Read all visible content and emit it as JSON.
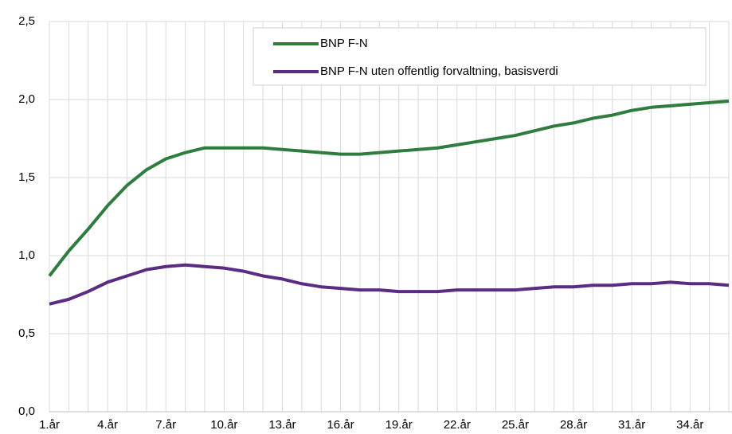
{
  "chart_data": {
    "type": "line",
    "categories": [
      "1.år",
      null,
      null,
      "4.år",
      null,
      null,
      "7.år",
      null,
      null,
      "10.år",
      null,
      null,
      "13.år",
      null,
      null,
      "16.år",
      null,
      null,
      "19.år",
      null,
      null,
      "22.år",
      null,
      null,
      "25.år",
      null,
      null,
      "28.år",
      null,
      null,
      "31.år",
      null,
      null,
      "34.år",
      null,
      null
    ],
    "series": [
      {
        "name": "BNP F-N",
        "color": "#2e7d3e",
        "values": [
          0.87,
          1.03,
          1.17,
          1.32,
          1.45,
          1.55,
          1.62,
          1.66,
          1.69,
          1.69,
          1.69,
          1.69,
          1.68,
          1.67,
          1.66,
          1.65,
          1.65,
          1.66,
          1.67,
          1.68,
          1.69,
          1.71,
          1.73,
          1.75,
          1.77,
          1.8,
          1.83,
          1.85,
          1.88,
          1.9,
          1.93,
          1.95,
          1.96,
          1.97,
          1.98,
          1.99
        ]
      },
      {
        "name": "BNP F-N uten offentlig forvaltning, basisverdi",
        "color": "#5b2c83",
        "values": [
          0.69,
          0.72,
          0.77,
          0.83,
          0.87,
          0.91,
          0.93,
          0.94,
          0.93,
          0.92,
          0.9,
          0.87,
          0.85,
          0.82,
          0.8,
          0.79,
          0.78,
          0.78,
          0.77,
          0.77,
          0.77,
          0.78,
          0.78,
          0.78,
          0.78,
          0.79,
          0.8,
          0.8,
          0.81,
          0.81,
          0.82,
          0.82,
          0.83,
          0.82,
          0.82,
          0.81
        ]
      }
    ],
    "ylim": [
      0,
      2.5
    ],
    "yticks": [
      {
        "value": 0,
        "label": "0,0"
      },
      {
        "value": 0.5,
        "label": "0,5"
      },
      {
        "value": 1,
        "label": "1,0"
      },
      {
        "value": 1.5,
        "label": "1,5"
      },
      {
        "value": 2,
        "label": "2,0"
      },
      {
        "value": 2.5,
        "label": "2,5"
      }
    ],
    "grid": true
  }
}
